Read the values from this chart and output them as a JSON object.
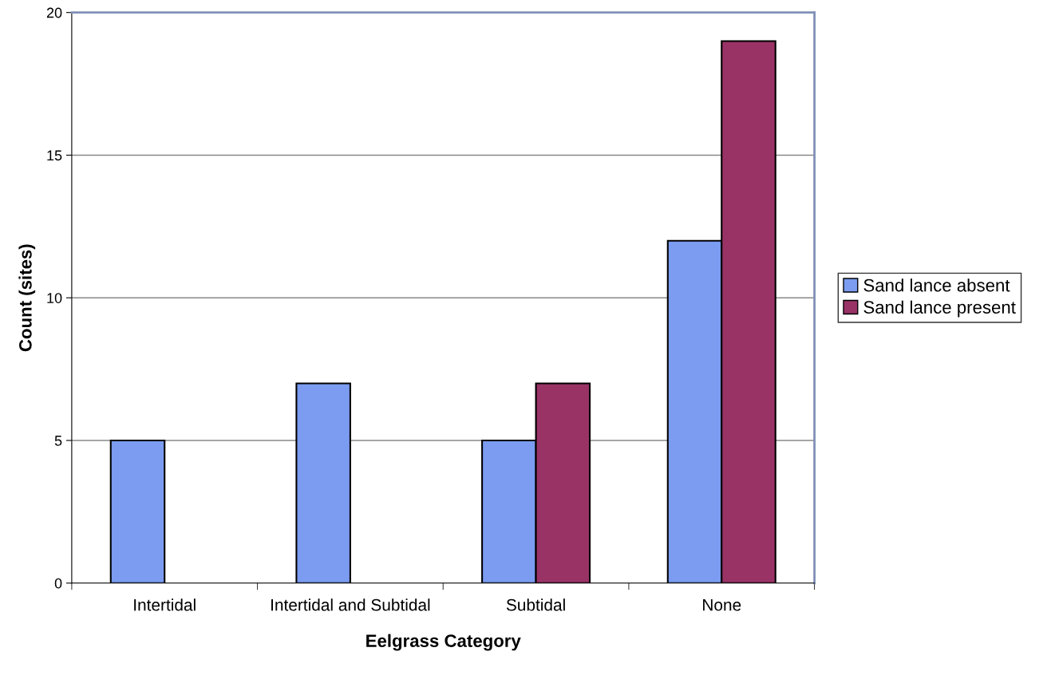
{
  "chart_data": {
    "type": "bar",
    "xlabel": "Eelgrass Category",
    "ylabel": "Count (sites)",
    "categories": [
      "Intertidal",
      "Intertidal and Subtidal",
      "Subtidal",
      "None"
    ],
    "series": [
      {
        "name": "Sand lance absent",
        "color": "#7b9cf0",
        "values": [
          5,
          7,
          5,
          12
        ]
      },
      {
        "name": "Sand lance present",
        "color": "#993366",
        "values": [
          null,
          null,
          7,
          19
        ]
      }
    ],
    "ylim": [
      0,
      20
    ],
    "yticks": [
      0,
      5,
      10,
      15,
      20
    ],
    "grid": "y",
    "legend": "right"
  }
}
